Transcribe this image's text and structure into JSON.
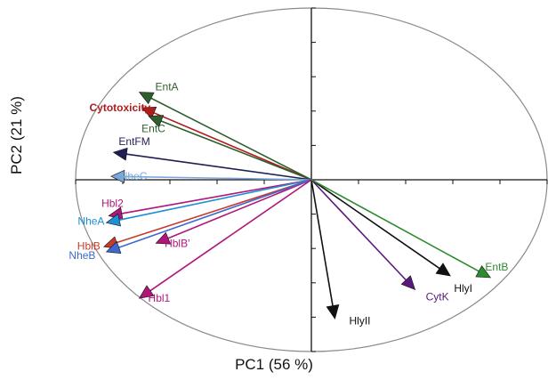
{
  "chart_data": {
    "type": "scatter",
    "subtype": "pca-biplot",
    "title": "",
    "xlabel": "PC1 (56 %)",
    "ylabel": "PC2 (21 %)",
    "xlim": [
      -1.0,
      1.0
    ],
    "ylim": [
      -1.0,
      1.0
    ],
    "grid": false,
    "circle": true,
    "series": [
      {
        "name": "EntA",
        "x": -0.73,
        "y": 0.51,
        "color": "#2f5f2f",
        "label_pos": "right"
      },
      {
        "name": "Cytotoxicity",
        "x": -0.72,
        "y": 0.42,
        "color": "#b01c1c",
        "label_pos": "left",
        "bold": true
      },
      {
        "name": "EntC",
        "x": -0.69,
        "y": 0.37,
        "color": "#2f5f2f",
        "label_pos": "below"
      },
      {
        "name": "EntFM",
        "x": -0.84,
        "y": 0.16,
        "color": "#1f1f55",
        "label_pos": "above"
      },
      {
        "name": "NheC",
        "x": -0.85,
        "y": 0.02,
        "color": "#79a8d8",
        "label_pos": "right"
      },
      {
        "name": "Hbl2",
        "x": -0.86,
        "y": -0.21,
        "color": "#b0157a",
        "label_pos": "above"
      },
      {
        "name": "NheA",
        "x": -0.87,
        "y": -0.25,
        "color": "#1d8fd6",
        "label_pos": "left"
      },
      {
        "name": "HblB",
        "x": -0.88,
        "y": -0.39,
        "color": "#c83a2a",
        "label_pos": "left"
      },
      {
        "name": "HblB'",
        "x": -0.66,
        "y": -0.37,
        "color": "#b0157a",
        "label_pos": "right"
      },
      {
        "name": "NheB",
        "x": -0.87,
        "y": -0.42,
        "color": "#3d6ad0",
        "label_pos": "left"
      },
      {
        "name": "Hbl1",
        "x": -0.73,
        "y": -0.69,
        "color": "#b0157a",
        "label_pos": "right"
      },
      {
        "name": "HlyII",
        "x": 0.1,
        "y": -0.81,
        "color": "#111111",
        "label_pos": "right"
      },
      {
        "name": "CytK",
        "x": 0.44,
        "y": -0.64,
        "color": "#5a1a7c",
        "label_pos": "right"
      },
      {
        "name": "HlyI",
        "x": 0.59,
        "y": -0.56,
        "color": "#111111",
        "label_pos": "below"
      },
      {
        "name": "EntB",
        "x": 0.76,
        "y": -0.57,
        "color": "#2e8b2e",
        "label_pos": "right"
      }
    ]
  }
}
